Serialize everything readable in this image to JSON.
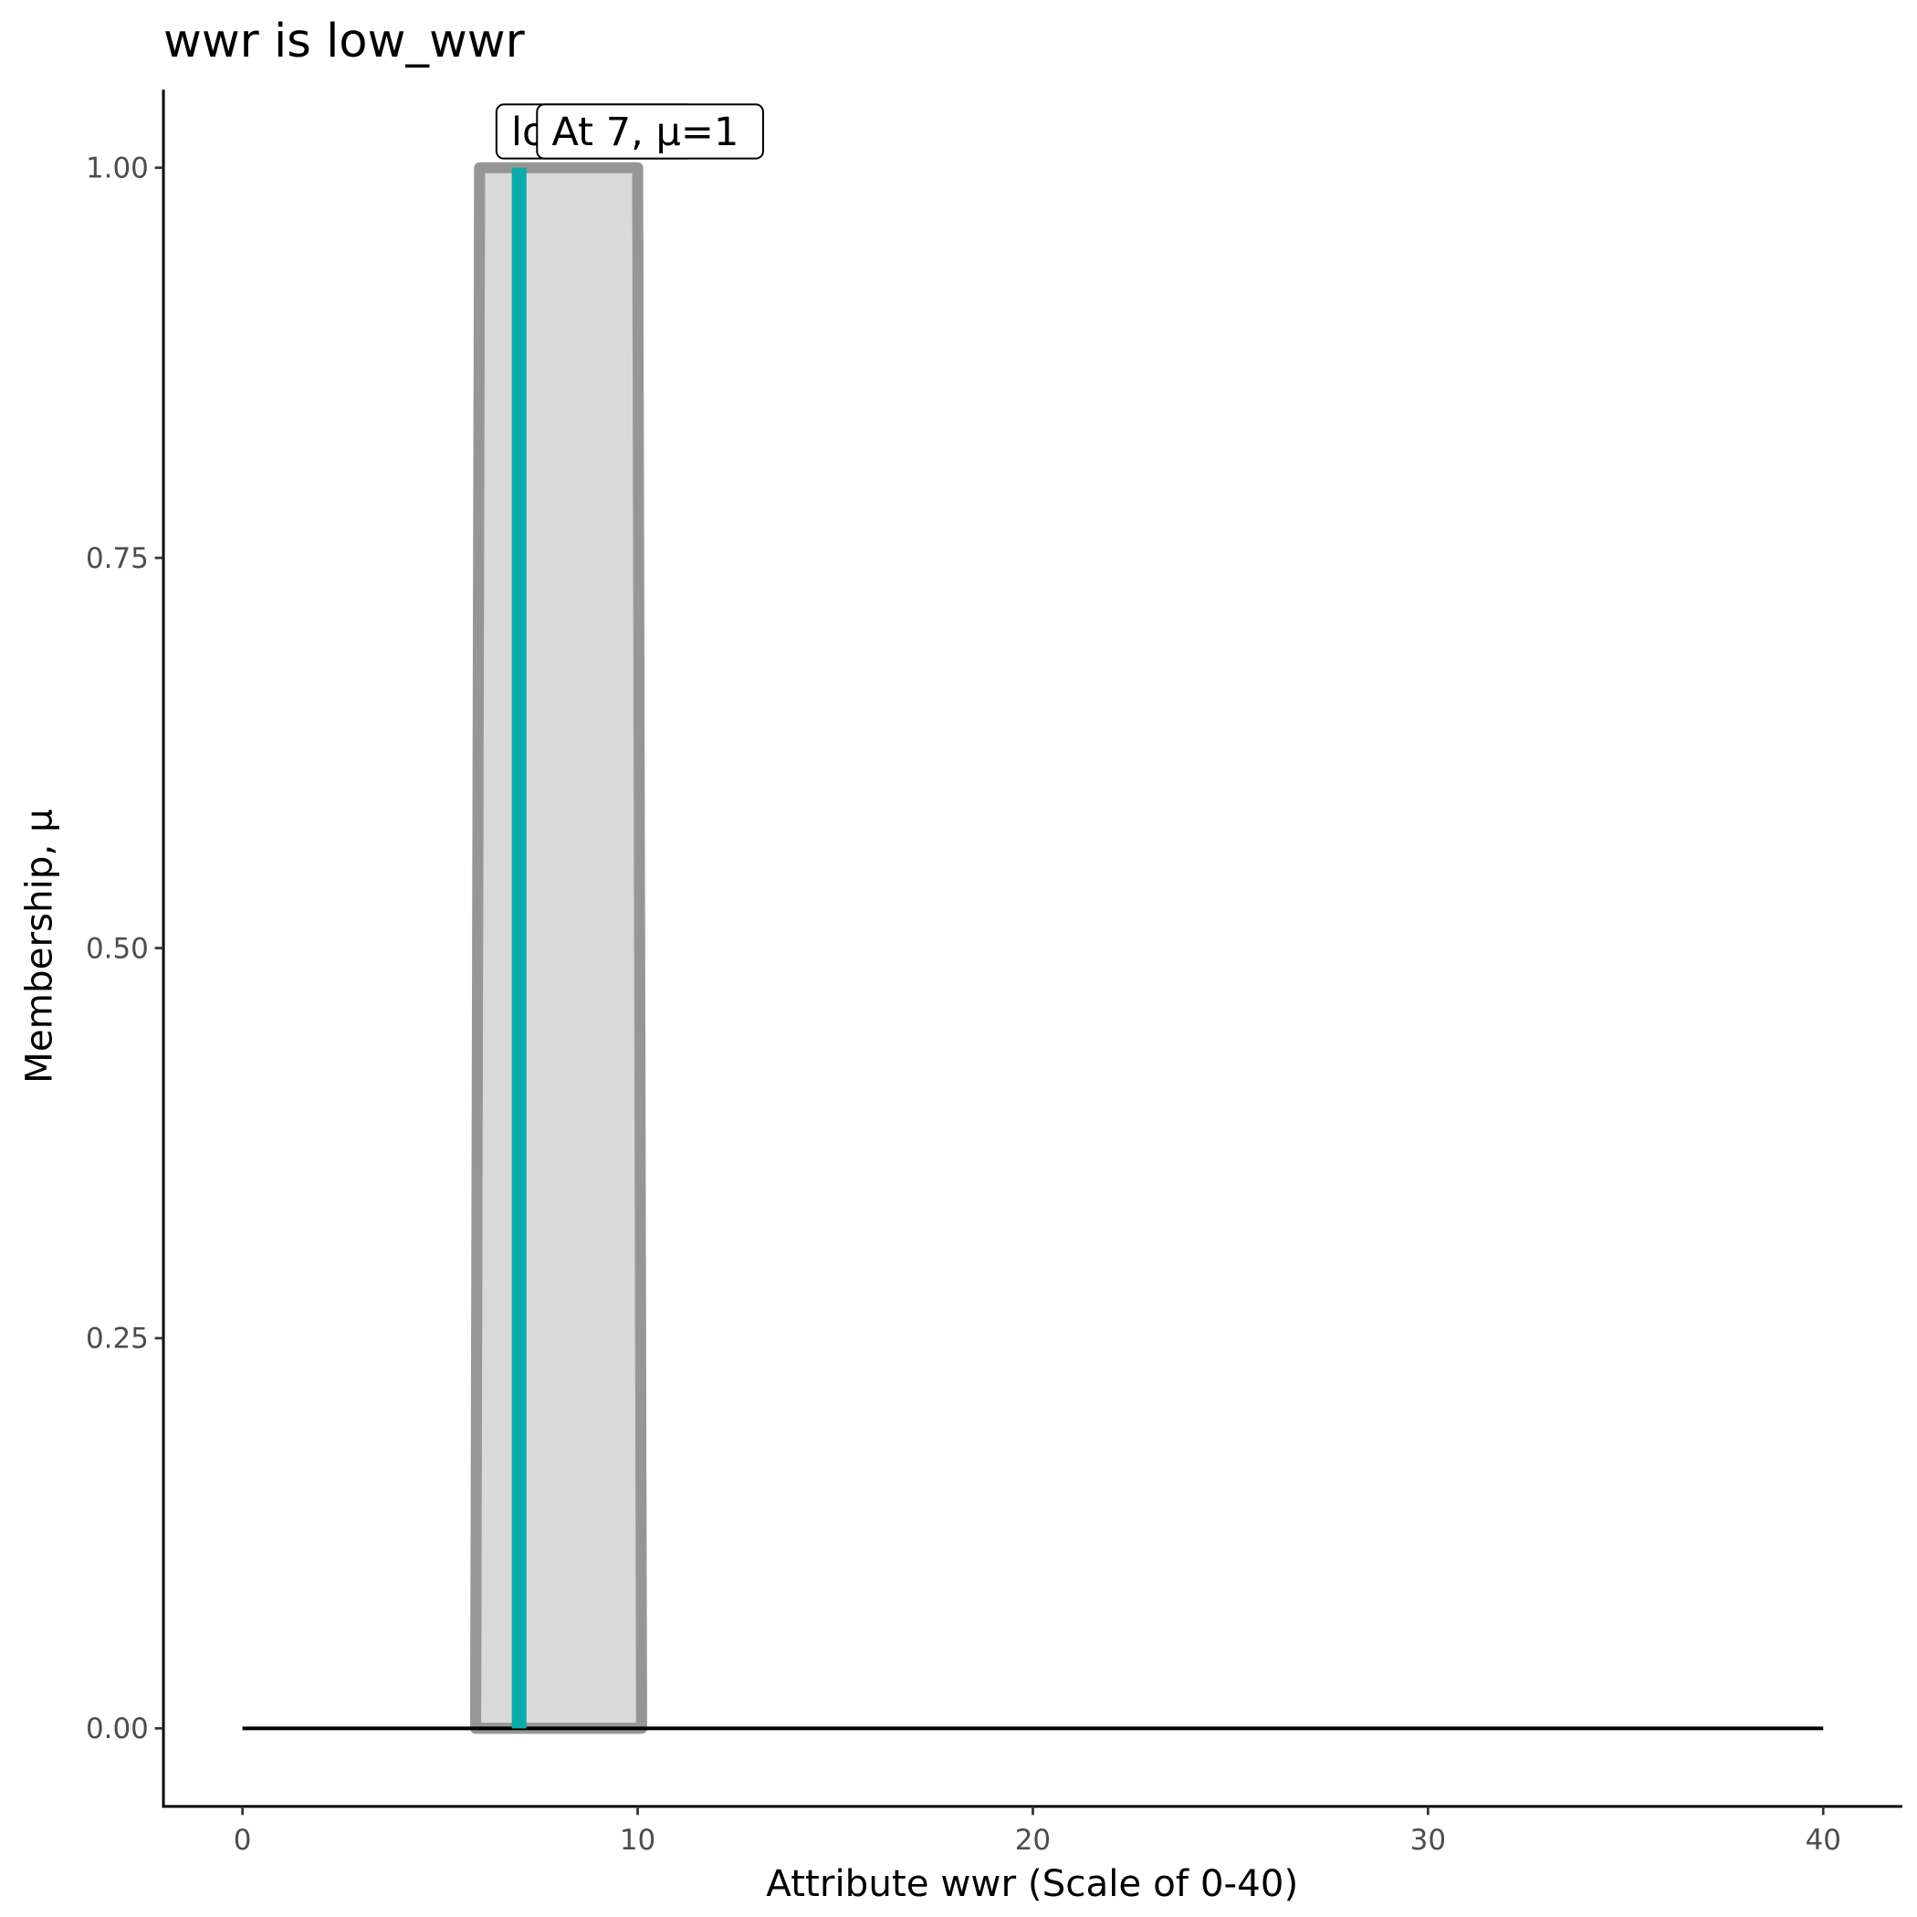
{
  "chart_data": {
    "type": "membership",
    "title": "wwr is low_wwr",
    "x_label": "Attribute wwr (Scale of 0-40)",
    "y_label": "Membership, μ",
    "xlim": [
      -2,
      42
    ],
    "ylim": [
      -0.05,
      1.05
    ],
    "xticks": [
      0,
      10,
      20,
      30,
      40
    ],
    "yticks": [
      {
        "value": 0,
        "label": "0.00"
      },
      {
        "value": 0.25,
        "label": "0.25"
      },
      {
        "value": 0.5,
        "label": "0.50"
      },
      {
        "value": 0.75,
        "label": "0.75"
      },
      {
        "value": 1,
        "label": "1.00"
      }
    ],
    "set": {
      "x": [
        5.9,
        6,
        10,
        10.1
      ],
      "values": [
        0,
        1,
        1,
        0
      ],
      "color": "#969696",
      "fill": "#d9d9d9"
    },
    "baseline": {
      "x": [
        0,
        40
      ],
      "values": [
        0,
        0
      ],
      "color": "#000000"
    },
    "marker": {
      "x": [
        7,
        7
      ],
      "values": [
        0,
        1
      ],
      "color": "#0aabab"
    },
    "annotations": [
      "low_wwr",
      "At 7, μ=1"
    ]
  }
}
